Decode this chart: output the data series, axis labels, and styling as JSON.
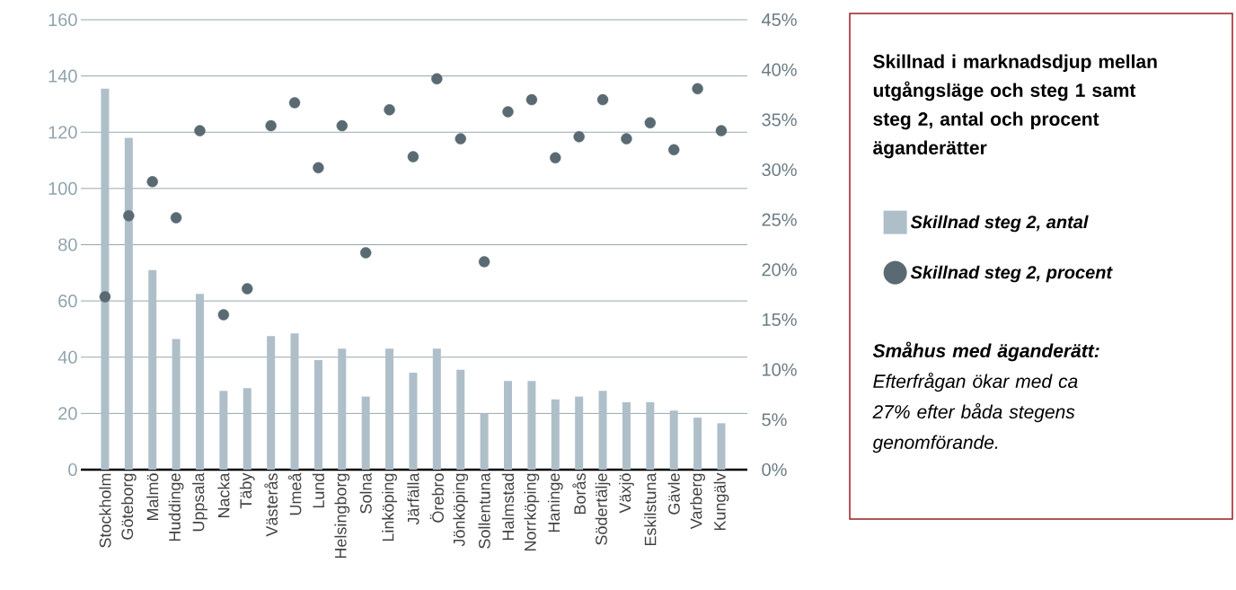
{
  "chart_data": {
    "type": "bar",
    "title": "Skillnad i marknadsdjup mellan utgångsläge och steg 1 samt steg 2, antal och procent äganderätter",
    "annotations": [
      "**Småhus med äganderätt:** Efterfrågan ökar med ca 27% efter båda stegens genomförande."
    ],
    "categories": [
      "Stockholm",
      "Göteborg",
      "Malmö",
      "Huddinge",
      "Uppsala",
      "Nacka",
      "Täby",
      "Västerås",
      "Umeå",
      "Lund",
      "Helsingborg",
      "Solna",
      "Linköping",
      "Järfälla",
      "Örebro",
      "Jönköping",
      "Sollentuna",
      "Halmstad",
      "Norrköping",
      "Haninge",
      "Borås",
      "Södertälje",
      "Växjö",
      "Eskilstuna",
      "Gävle",
      "Varberg",
      "Kungälv"
    ],
    "series": [
      {
        "name": "Skillnad steg 2, antal",
        "color": "#aebfc9",
        "values": [
          135.5,
          118,
          71,
          46.5,
          62.5,
          28,
          29,
          47.5,
          48.5,
          39,
          43,
          26,
          43,
          34.5,
          43,
          35.5,
          20,
          31.5,
          31.5,
          25,
          26,
          28,
          24,
          24,
          21,
          18.5,
          16.5
        ]
      },
      {
        "name": "Skillnad steg 2, procent",
        "type": "scatter",
        "axis": "y2",
        "color": "#5a6a72",
        "values": [
          17.3,
          25.4,
          28.8,
          25.2,
          33.9,
          15.5,
          18.1,
          34.4,
          36.7,
          30.2,
          34.4,
          21.7,
          36.0,
          31.3,
          39.1,
          33.1,
          20.8,
          35.8,
          37.0,
          31.2,
          33.3,
          37.0,
          33.1,
          34.7,
          32.0,
          38.1,
          33.9
        ]
      }
    ],
    "ylim": [
      0,
      160
    ],
    "yticks": [
      0,
      20,
      40,
      60,
      80,
      100,
      120,
      140,
      160
    ],
    "y2lim": [
      0,
      45
    ],
    "y2ticks": [
      {
        "value": 0,
        "label": "0%"
      },
      {
        "value": 5,
        "label": "5%"
      },
      {
        "value": 10,
        "label": "10%"
      },
      {
        "value": 15,
        "label": "15%"
      },
      {
        "value": 20,
        "label": "20%"
      },
      {
        "value": 25,
        "label": "25%"
      },
      {
        "value": 30,
        "label": "30%"
      },
      {
        "value": 35,
        "label": "35%"
      },
      {
        "value": 40,
        "label": "40%"
      },
      {
        "value": 45,
        "label": "45%"
      }
    ],
    "grid": "y",
    "legend": "right",
    "marker": "circle"
  }
}
